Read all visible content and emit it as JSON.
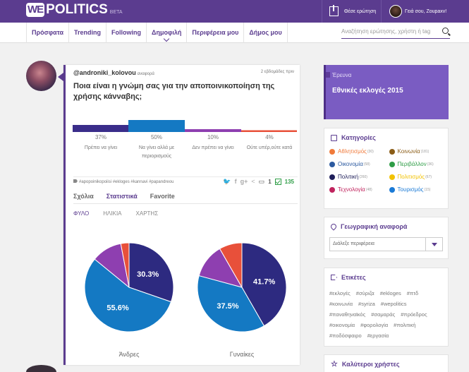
{
  "header": {
    "logo_we": "WE",
    "logo_politics": "POLITICS",
    "logo_beta": "BETA",
    "ask_label": "Θέσε ερώτηση",
    "user_greeting": "Γειά σου, Zoupaxv!"
  },
  "nav": {
    "tabs": [
      {
        "label": "Πρόσφατα"
      },
      {
        "label": "Trending"
      },
      {
        "label": "Following"
      },
      {
        "label": "Δημοφιλή"
      },
      {
        "label": "Περιφέρεια μου"
      },
      {
        "label": "Δήμος μου"
      }
    ],
    "search_placeholder": "Αναζήτηση ερώτησης, χρήστη ή tag"
  },
  "post": {
    "author": "@androniki_kolovou",
    "author_role": "αναφορά",
    "time": "2 εβδομάδες πριν",
    "question": "Ποια είναι η γνώμη σας για την αποποινικοποίηση της χρήσης κάνναβης;",
    "poll": [
      {
        "pct": "37%",
        "label": "Πρέπει να γίνει",
        "value": 37,
        "color": "#3a2d8a"
      },
      {
        "pct": "50%",
        "label": "Να γίνει αλλά με περιορισμούς",
        "value": 50,
        "color": "#1479c3"
      },
      {
        "pct": "10%",
        "label": "Δεν πρέπει να γίνει",
        "value": 10,
        "color": "#8e3fb0"
      },
      {
        "pct": "4%",
        "label": "Ούτε υπέρ,ούτε κατά",
        "value": 4,
        "color": "#e8503a"
      }
    ],
    "tags": "#apopoinikopoiisi #ekloges #kannavi #papandreou",
    "comments": "1",
    "votes": "135",
    "subtabs": [
      "Σχόλια",
      "Στατιστικά",
      "Favorite"
    ],
    "filter_tabs": [
      "ΦΥΛΟ",
      "ΗΛΙΚΙΑ",
      "ΧΑΡΤΗΣ"
    ],
    "share_icons": [
      "twitter-icon",
      "facebook-icon",
      "google-plus-icon",
      "share-icon"
    ]
  },
  "chart_data": [
    {
      "type": "pie",
      "title": "Άνδρες",
      "categories": [
        "Πρέπει να γίνει",
        "Να γίνει αλλά με περιορισμούς",
        "Δεν πρέπει να γίνει",
        "Ούτε υπέρ,ούτε κατά"
      ],
      "values": [
        30.3,
        55.6,
        11.1,
        3.0
      ],
      "data_labels": [
        "30.3%",
        "55.6%",
        "",
        ""
      ],
      "colors": [
        "#2d2a80",
        "#1479c3",
        "#8e3fb0",
        "#e8503a"
      ]
    },
    {
      "type": "pie",
      "title": "Γυναίκες",
      "categories": [
        "Πρέπει να γίνει",
        "Να γίνει αλλά με περιορισμούς",
        "Δεν πρέπει να γίνει",
        "Ούτε υπέρ,ούτε κατά"
      ],
      "values": [
        41.7,
        37.5,
        12.5,
        8.3
      ],
      "data_labels": [
        "41.7%",
        "37.5%",
        "",
        ""
      ],
      "colors": [
        "#2d2a80",
        "#1479c3",
        "#8e3fb0",
        "#e8503a"
      ]
    }
  ],
  "sidebar": {
    "survey_title": "Έρευνα",
    "survey_text": "Εθνικές εκλογές 2015",
    "categories_title": "Κατηγορίες",
    "categories": [
      {
        "label": "Αθλητισμός",
        "count": "(30)",
        "color": "#f07a3a"
      },
      {
        "label": "Κοινωνία",
        "count": "(181)",
        "color": "#8a5c16"
      },
      {
        "label": "Οικονομία",
        "count": "(58)",
        "color": "#2c5aa0"
      },
      {
        "label": "Περιβάλλον",
        "count": "(36)",
        "color": "#2e9d46"
      },
      {
        "label": "Πολιτική",
        "count": "(260)",
        "color": "#1f1f5a"
      },
      {
        "label": "Πολιτισμός",
        "count": "(67)",
        "color": "#f2c200"
      },
      {
        "label": "Τεχνολογία",
        "count": "(48)",
        "color": "#c0245e"
      },
      {
        "label": "Τουρισμός",
        "count": "(15)",
        "color": "#1a7ad6"
      }
    ],
    "geo_title": "Γεωγραφική αναφορά",
    "geo_select": "Διάλεξε περιφέρεια",
    "tags_title": "Ετικέτες",
    "tags": [
      "#εκλογές",
      "#σύριζα",
      "#ekloges",
      "#πτδ",
      "#κοινωνία",
      "#syriza",
      "#wepolitics",
      "#παναθηναϊκός",
      "#σαμαράς",
      "#πρόεδρος",
      "#οικονομία",
      "#φορολογία",
      "#πολιτική",
      "#ποδόσφαιρο",
      "#εργασία"
    ],
    "best_users_title": "Καλύτεροι χρήστες"
  }
}
